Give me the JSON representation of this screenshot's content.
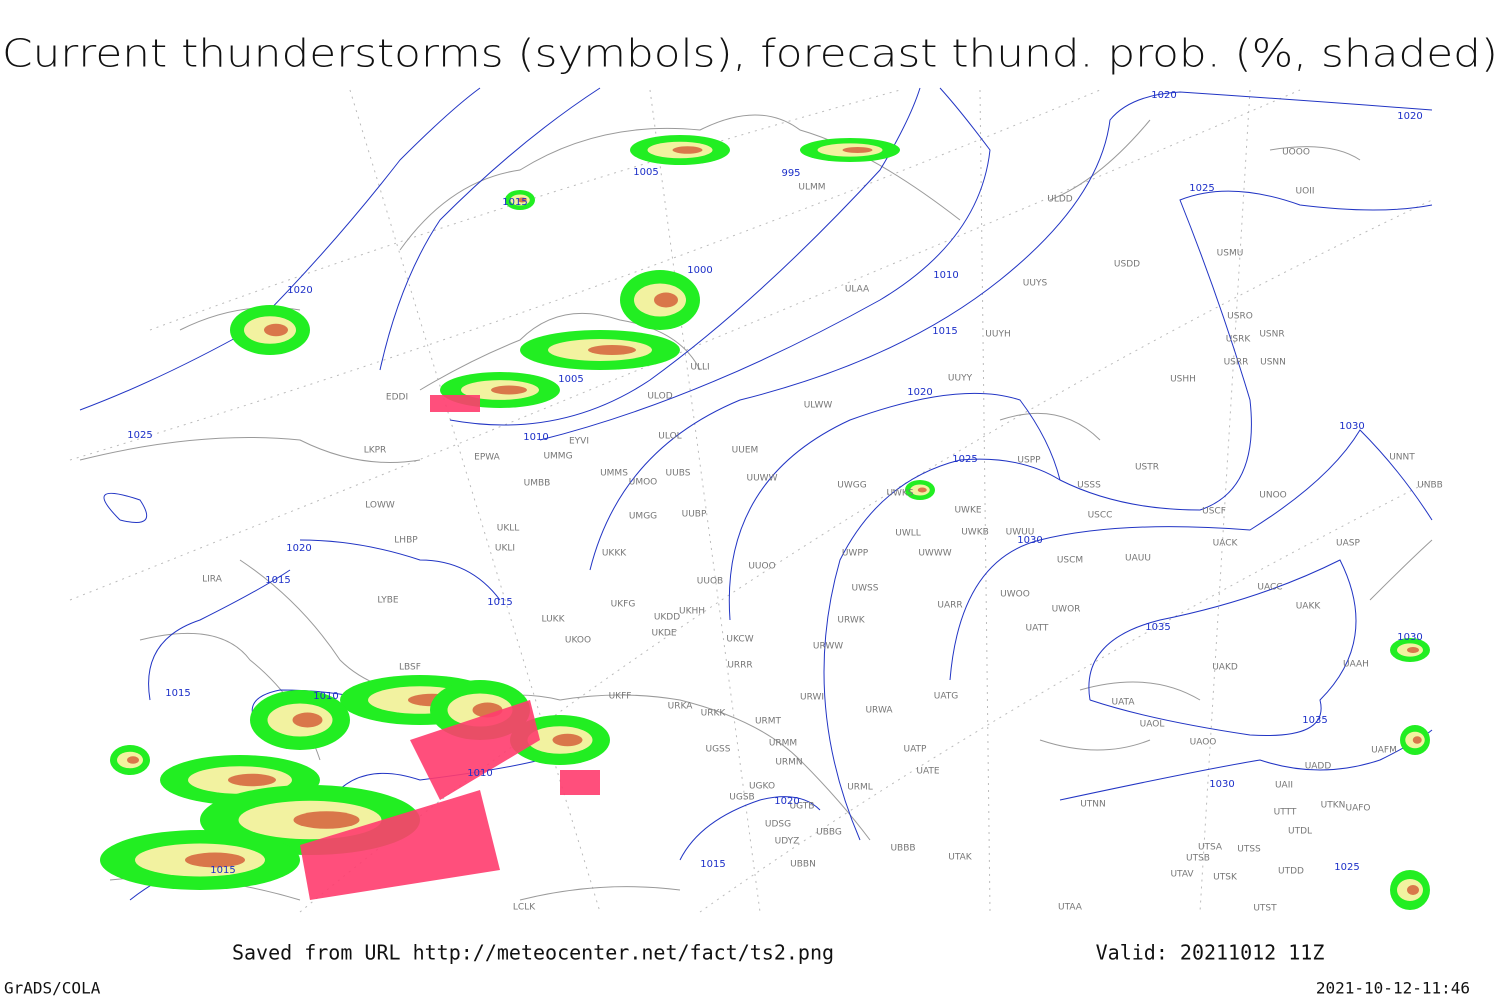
{
  "title": "Current thunderstorms (symbols), forecast thund. prob. (%, shaded)",
  "isobar_labels": [
    1020,
    1020,
    1005,
    995,
    1015,
    1025,
    1000,
    1020,
    1010,
    1015,
    1005,
    1020,
    1010,
    1025,
    1030,
    1025,
    1030,
    1020,
    1015,
    1015,
    1035,
    1030,
    1015,
    1010,
    1035,
    1010,
    1030,
    1020,
    1015,
    1015,
    1025
  ],
  "stations": [
    "ULDD",
    "UOOO",
    "UOII",
    "USMU",
    "USDD",
    "UUYS",
    "USRO",
    "USRK",
    "USNR",
    "USRR",
    "USNN",
    "USHH",
    "UUYH",
    "ULAA",
    "ULMM",
    "ULLI",
    "ULOD",
    "ULOL",
    "EYVI",
    "EPWA",
    "UMMG",
    "LKPR",
    "UUEM",
    "UMMS",
    "UMOO",
    "UUBS",
    "UUWW",
    "UMBB",
    "UWGG",
    "UWKS",
    "UWKE",
    "USPP",
    "USSS",
    "USTR",
    "UNOO",
    "UNNT",
    "UNBB",
    "LOWW",
    "UMGG",
    "UUBP",
    "USCC",
    "USCF",
    "UWLL",
    "UWKB",
    "UWUU",
    "UWWW",
    "UACK",
    "UASP",
    "UKLL",
    "LHBP",
    "UKLI",
    "UKKK",
    "UWPP",
    "USCM",
    "UAUU",
    "UUOO",
    "LIRA",
    "UUOB",
    "UWSS",
    "UACC",
    "LYBE",
    "UKFG",
    "UKDD",
    "UKHH",
    "UARR",
    "UWOO",
    "UWOR",
    "UAKK",
    "LUKK",
    "UKOO",
    "UKDE",
    "UKCW",
    "URWK",
    "UATT",
    "URWW",
    "LBSF",
    "UAKD",
    "UAAH",
    "URRR",
    "UKFF",
    "URKA",
    "URKK",
    "URWI",
    "UATG",
    "UATA",
    "UAFM",
    "URWA",
    "URMT",
    "UAOL",
    "URMM",
    "UGSS",
    "UATP",
    "URMN",
    "UATE",
    "UAOO",
    "UADD",
    "UGKO",
    "UGSB",
    "URML",
    "UAII",
    "UGTB",
    "UTNN",
    "UTKN",
    "UAFO",
    "UTTT",
    "UDSG",
    "UBBG",
    "UTDL",
    "UDYZ",
    "UBBB",
    "UTSA",
    "UTSS",
    "UTSB",
    "UBBN",
    "UTAK",
    "UTAV",
    "UTSK",
    "UTDD",
    "LCLK",
    "UTAA",
    "UTST",
    "EDDI",
    "UUYY",
    "ULWW"
  ],
  "footer": {
    "source": "Saved from URL http://meteocenter.net/fact/ts2.png",
    "valid": "Valid: 20211012 11Z",
    "software": "GrADS/COLA",
    "timestamp": "2021-10-12-11:46"
  }
}
